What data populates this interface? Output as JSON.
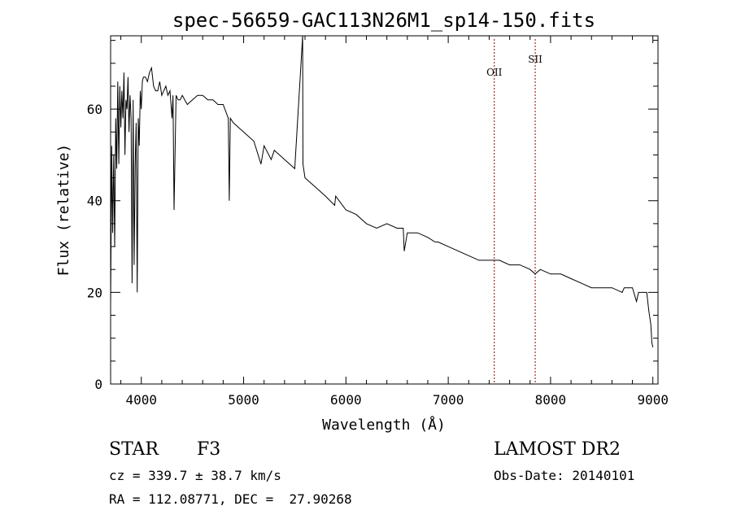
{
  "chart_data": {
    "type": "line",
    "title": "spec-56659-GAC113N26M1_sp14-150.fits",
    "xlabel": "Wavelength (Å)",
    "ylabel": "Flux (relative)",
    "xlim": [
      3700,
      9050
    ],
    "ylim": [
      0,
      76
    ],
    "x_ticks": [
      4000,
      5000,
      6000,
      7000,
      8000,
      9000
    ],
    "y_ticks": [
      0,
      20,
      40,
      60
    ],
    "grid": false,
    "series": [
      {
        "x": [
          3700,
          3710,
          3720,
          3730,
          3740,
          3750,
          3760,
          3770,
          3780,
          3790,
          3800,
          3810,
          3820,
          3830,
          3840,
          3850,
          3860,
          3870,
          3880,
          3890,
          3900,
          3910,
          3920,
          3930,
          3940,
          3950,
          3960,
          3970,
          3980,
          3990,
          4000,
          4010,
          4020,
          4040,
          4060,
          4080,
          4100,
          4120,
          4140,
          4160,
          4180,
          4200,
          4220,
          4240,
          4260,
          4280,
          4300,
          4310,
          4320,
          4340,
          4360,
          4380,
          4400,
          4450,
          4500,
          4550,
          4600,
          4650,
          4700,
          4750,
          4800,
          4850,
          4860,
          4870,
          4900,
          4950,
          5000,
          5100,
          5170,
          5200,
          5269,
          5300,
          5400,
          5500,
          5577,
          5580,
          5600,
          5700,
          5800,
          5890,
          5900,
          6000,
          6100,
          6200,
          6300,
          6400,
          6500,
          6560,
          6570,
          6600,
          6700,
          6800,
          6870,
          6900,
          7000,
          7100,
          7200,
          7300,
          7400,
          7500,
          7600,
          7700,
          7800,
          7850,
          7900,
          8000,
          8100,
          8200,
          8300,
          8400,
          8500,
          8600,
          8700,
          8720,
          8800,
          8840,
          8860,
          8900,
          8940,
          8960,
          8980,
          8990,
          9000
        ],
        "y": [
          17,
          52,
          33,
          50,
          30,
          58,
          47,
          66,
          48,
          65,
          56,
          64,
          58,
          68,
          50,
          62,
          60,
          67,
          55,
          63,
          58,
          22,
          62,
          26,
          48,
          57,
          20,
          58,
          52,
          64,
          60,
          66,
          67,
          67,
          66,
          68,
          69,
          65,
          64,
          64,
          66,
          63,
          64,
          65,
          63,
          64,
          58,
          63,
          38,
          63,
          62,
          62,
          63,
          61,
          62,
          63,
          63,
          62,
          62,
          61,
          61,
          58,
          40,
          58,
          57,
          56,
          55,
          53,
          48,
          52,
          49,
          51,
          49,
          47,
          76,
          48,
          45,
          43,
          41,
          39,
          41,
          38,
          37,
          35,
          34,
          35,
          34,
          34,
          29,
          33,
          33,
          32,
          31,
          31,
          30,
          29,
          28,
          27,
          27,
          27,
          26,
          26,
          25,
          24,
          25,
          24,
          24,
          23,
          22,
          21,
          21,
          21,
          20,
          21,
          21,
          18,
          20,
          20,
          20,
          16,
          13,
          9,
          8
        ]
      }
    ],
    "annotations": [
      {
        "label": "OII",
        "x": 7450
      },
      {
        "label": "SII",
        "x": 7850
      }
    ]
  },
  "info": {
    "object_class": "STAR",
    "subclass": "F3",
    "survey": "LAMOST DR2",
    "redshift": "cz = 339.7 ± 38.7 km/s",
    "obs_date": "Obs-Date: 20140101",
    "coords": "RA = 112.08771, DEC =  27.90268"
  },
  "colors": {
    "spectrum": "#000000",
    "annotation_line": "#8b0000",
    "axes": "#000000",
    "background": "#ffffff"
  }
}
